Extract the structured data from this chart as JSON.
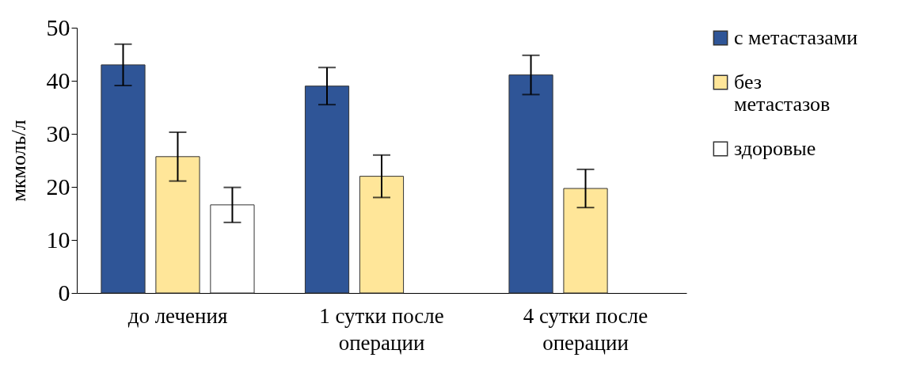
{
  "chart_data": {
    "type": "bar",
    "ylabel": "мкмоль/л",
    "categories": [
      "до лечения",
      "1 сутки после операции",
      "4 сутки после операции"
    ],
    "series": [
      {
        "name": "с метастазами",
        "color": "#2f5597",
        "values": [
          43.0,
          39.0,
          41.1
        ],
        "errors": [
          3.9,
          3.5,
          3.7
        ]
      },
      {
        "name": "без метастазов",
        "color": "#ffe699",
        "values": [
          25.7,
          22.0,
          19.7
        ],
        "errors": [
          4.6,
          4.0,
          3.6
        ]
      },
      {
        "name": "здоровые",
        "color": "#ffffff",
        "values": [
          16.6,
          null,
          null
        ],
        "errors": [
          3.3,
          null,
          null
        ]
      }
    ],
    "ylim": [
      0,
      50
    ],
    "yticks": [
      0,
      10,
      20,
      30,
      40,
      50
    ],
    "grid": false,
    "legend": "top right"
  }
}
